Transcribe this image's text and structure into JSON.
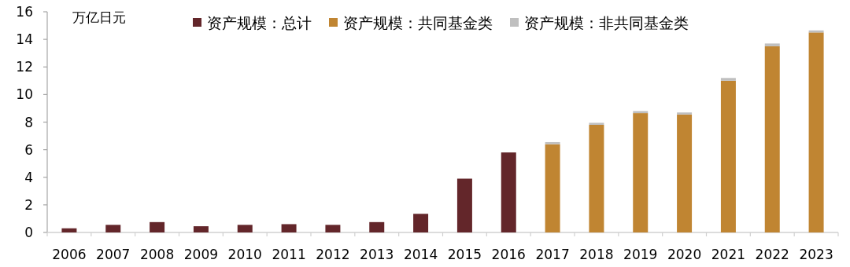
{
  "chart_data": {
    "type": "bar",
    "stacked": true,
    "ylabel": "万亿日元",
    "categories": [
      "2006",
      "2007",
      "2008",
      "2009",
      "2010",
      "2011",
      "2012",
      "2013",
      "2014",
      "2015",
      "2016",
      "2017",
      "2018",
      "2019",
      "2020",
      "2021",
      "2022",
      "2023"
    ],
    "series": [
      {
        "name": "资产规模：总计",
        "color": "#63262a",
        "values": [
          0.3,
          0.55,
          0.75,
          0.45,
          0.55,
          0.6,
          0.55,
          0.75,
          1.35,
          3.9,
          5.8,
          null,
          null,
          null,
          null,
          null,
          null,
          null
        ]
      },
      {
        "name": "资产规模：共同基金类",
        "color": "#c08532",
        "values": [
          null,
          null,
          null,
          null,
          null,
          null,
          null,
          null,
          null,
          null,
          null,
          6.4,
          7.8,
          8.65,
          8.55,
          11.0,
          13.5,
          14.5
        ]
      },
      {
        "name": "资产规模：非共同基金类",
        "color": "#bfbfbf",
        "values": [
          null,
          null,
          null,
          null,
          null,
          null,
          null,
          null,
          null,
          null,
          null,
          0.15,
          0.15,
          0.15,
          0.15,
          0.2,
          0.2,
          0.15
        ]
      }
    ],
    "ylim": [
      0,
      16
    ],
    "yticks": [
      0,
      2,
      4,
      6,
      8,
      10,
      12,
      14,
      16
    ],
    "grid": false,
    "legend": "top right"
  }
}
